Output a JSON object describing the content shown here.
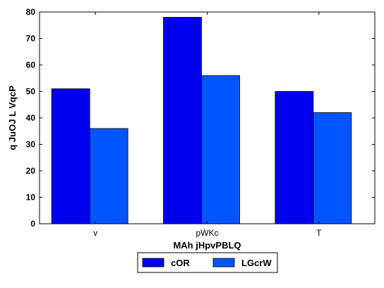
{
  "chart_data": {
    "type": "bar",
    "title": "",
    "xlabel": "MAh jHpvPBLQ",
    "ylabel": "q JuOJ  L VqcP",
    "categories": [
      "v",
      "pWKc",
      "T"
    ],
    "series": [
      {
        "name": "cOR",
        "values": [
          51,
          78,
          50
        ],
        "color": "#0000ee"
      },
      {
        "name": "LGcrW",
        "values": [
          36,
          56,
          42
        ],
        "color": "#0055ff"
      }
    ],
    "ylim": [
      0,
      80
    ],
    "yticks": [
      0,
      10,
      20,
      30,
      40,
      50,
      60,
      70,
      80
    ],
    "grid": false,
    "legend_position": "bottom-center"
  }
}
